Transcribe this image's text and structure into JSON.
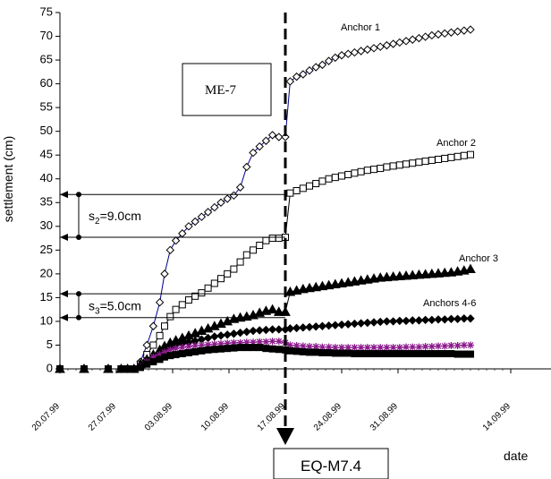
{
  "chart_data": {
    "type": "line",
    "title": "",
    "site_label": "ME-7",
    "ylabel": "settlement (cm)",
    "xlabel": "date",
    "ylim": [
      0,
      75
    ],
    "yticks": [
      0,
      5,
      10,
      15,
      20,
      25,
      30,
      35,
      40,
      45,
      50,
      55,
      60,
      65,
      70,
      75
    ],
    "xlim": [
      "20.07.99",
      "19.09.99"
    ],
    "xtick_labels": [
      "20.07.99",
      "27.07.99",
      "03.08.99",
      "10.08.99",
      "17.08.99",
      "24.08.99",
      "31.08.99",
      "14.09.99"
    ],
    "xtick_days": [
      0,
      7,
      14,
      21,
      28,
      35,
      42,
      56
    ],
    "event": {
      "label": "EQ-M7.4",
      "date": "17.08.99",
      "day": 28
    },
    "dimensions": [
      {
        "text": "s",
        "subscript": "2",
        "suffix": "=9.0cm",
        "from": 27.7,
        "to": 36.7
      },
      {
        "text": "s",
        "subscript": "3",
        "suffix": "=5.0cm",
        "from": 10.8,
        "to": 15.8
      }
    ],
    "series": [
      {
        "name": "Anchor 1",
        "marker": "diamond-open",
        "color": "#00008b",
        "x": [
          0,
          3,
          6,
          7.6,
          8.4,
          9.2,
          10.0,
          10.8,
          11.6,
          12.4,
          13.0,
          13.7,
          14.4,
          15.2,
          16.0,
          16.8,
          17.6,
          18.4,
          19.2,
          20.0,
          20.8,
          21.6,
          22.4,
          23.2,
          24.0,
          24.8,
          25.6,
          26.4,
          27.2,
          28.0,
          28.6,
          29.4,
          30.2,
          31.0,
          31.8,
          32.6,
          33.4,
          34.2,
          35.0,
          35.8,
          36.6,
          37.4,
          38.2,
          39.0,
          39.8,
          40.6,
          41.4,
          42.2,
          43.0,
          43.8,
          44.6,
          45.4,
          46.2,
          47.0,
          47.8,
          48.6,
          49.4,
          50.2,
          51.0
        ],
        "y": [
          0,
          0,
          0,
          0,
          0,
          0,
          1.5,
          5,
          9,
          14,
          20,
          25,
          27,
          28.5,
          30,
          31,
          32,
          33,
          34,
          35,
          35.8,
          36.5,
          38.2,
          42.5,
          45.5,
          46.8,
          48,
          49.2,
          48.8,
          48.8,
          60.5,
          61.5,
          62,
          62.8,
          63.5,
          64,
          64.8,
          65.5,
          66,
          66.3,
          66.6,
          66.9,
          67.2,
          67.5,
          67.8,
          68.1,
          68.4,
          68.7,
          69,
          69.3,
          69.6,
          69.9,
          70.2,
          70.4,
          70.6,
          70.8,
          71,
          71.2,
          71.4
        ]
      },
      {
        "name": "Anchor 2",
        "marker": "square-open",
        "color": "#000000",
        "x": [
          0,
          3,
          6,
          7.6,
          8.4,
          9.2,
          10.0,
          10.8,
          11.6,
          12.4,
          13.0,
          13.7,
          14.4,
          15.2,
          16.0,
          16.8,
          17.6,
          18.4,
          19.2,
          20.0,
          20.8,
          21.6,
          22.4,
          23.2,
          24.0,
          24.8,
          25.6,
          26.4,
          27.2,
          28.0,
          28.6,
          29.4,
          30.2,
          31.0,
          31.8,
          32.6,
          33.4,
          34.2,
          35.0,
          35.8,
          36.6,
          37.4,
          38.2,
          39.0,
          39.8,
          40.6,
          41.4,
          42.2,
          43.0,
          43.8,
          44.6,
          45.4,
          46.2,
          47.0,
          47.8,
          48.6,
          49.4,
          50.2,
          51.0
        ],
        "y": [
          0,
          0,
          0,
          0,
          0,
          0,
          1,
          3,
          5,
          7,
          9,
          11,
          12.5,
          13.5,
          14.5,
          15.3,
          16,
          17,
          18,
          19,
          20,
          21,
          22.5,
          24,
          25,
          26,
          27,
          27.5,
          27.5,
          27.7,
          37,
          37.5,
          38,
          38.5,
          39,
          39.5,
          40,
          40.3,
          40.6,
          40.9,
          41.2,
          41.5,
          41.8,
          42,
          42.2,
          42.5,
          42.7,
          42.9,
          43.1,
          43.3,
          43.5,
          43.7,
          43.9,
          44.1,
          44.3,
          44.5,
          44.7,
          44.9,
          45.1
        ]
      },
      {
        "name": "Anchor 3",
        "marker": "triangle-filled",
        "color": "#000000",
        "x": [
          0,
          3,
          6,
          7.6,
          8.4,
          9.2,
          10.0,
          10.8,
          11.6,
          12.4,
          13.0,
          13.7,
          14.4,
          15.2,
          16.0,
          16.8,
          17.6,
          18.4,
          19.2,
          20.0,
          20.8,
          21.6,
          22.4,
          23.2,
          24.0,
          24.8,
          25.6,
          26.4,
          27.2,
          28.0,
          28.6,
          29.4,
          30.2,
          31.0,
          31.8,
          32.6,
          33.4,
          34.2,
          35.0,
          35.8,
          36.6,
          37.4,
          38.2,
          39.0,
          39.8,
          40.6,
          41.4,
          42.2,
          43.0,
          43.8,
          44.6,
          45.4,
          46.2,
          47.0,
          47.8,
          48.6,
          49.4,
          50.2,
          51.0
        ],
        "y": [
          0,
          0,
          0,
          0,
          0,
          0,
          1,
          2,
          3,
          4,
          4.8,
          5.5,
          6,
          6.5,
          7,
          7.5,
          8,
          8.5,
          9,
          9.5,
          10,
          10.5,
          10.8,
          11,
          11.3,
          11.8,
          12.2,
          12.5,
          12,
          12,
          16.2,
          16.5,
          16.8,
          17,
          17.2,
          17.4,
          17.6,
          17.8,
          18,
          18.2,
          18.4,
          18.6,
          18.8,
          19,
          19.2,
          19.3,
          19.4,
          19.5,
          19.6,
          19.7,
          19.8,
          19.9,
          20,
          20.1,
          20.2,
          20.3,
          20.5,
          20.7,
          21
        ]
      },
      {
        "name": "Anchors 4-6",
        "marker": "diamond-filled",
        "color": "#000000",
        "x": [
          0,
          3,
          6,
          7.6,
          8.4,
          9.2,
          10.0,
          10.8,
          11.6,
          12.4,
          13.0,
          13.7,
          14.4,
          15.2,
          16.0,
          16.8,
          17.6,
          18.4,
          19.2,
          20.0,
          20.8,
          21.6,
          22.4,
          23.2,
          24.0,
          24.8,
          25.6,
          26.4,
          27.2,
          28.0,
          28.6,
          29.4,
          30.2,
          31.0,
          31.8,
          32.6,
          33.4,
          34.2,
          35.0,
          35.8,
          36.6,
          37.4,
          38.2,
          39.0,
          39.8,
          40.6,
          41.4,
          42.2,
          43.0,
          43.8,
          44.6,
          45.4,
          46.2,
          47.0,
          47.8,
          48.6,
          49.4,
          50.2,
          51.0
        ],
        "y": [
          0,
          0,
          0,
          0,
          0,
          0,
          0.5,
          1.5,
          2.5,
          3.3,
          4,
          4.5,
          5,
          5.3,
          5.6,
          5.9,
          6.2,
          6.5,
          6.8,
          7,
          7.2,
          7.4,
          7.6,
          7.8,
          8,
          8.1,
          8.2,
          8.3,
          8.3,
          8.3,
          8.5,
          8.6,
          8.7,
          8.8,
          8.9,
          9,
          9.1,
          9.2,
          9.3,
          9.4,
          9.5,
          9.6,
          9.7,
          9.8,
          9.9,
          10,
          10,
          10.1,
          10.1,
          10.2,
          10.2,
          10.3,
          10.3,
          10.4,
          10.4,
          10.5,
          10.5,
          10.6,
          10.6
        ]
      },
      {
        "name": "",
        "marker": "star",
        "color": "#8b1a8b",
        "x": [
          0,
          3,
          6,
          7.6,
          8.4,
          9.2,
          10.0,
          10.8,
          11.6,
          12.4,
          13.0,
          13.7,
          14.4,
          15.2,
          16.0,
          16.8,
          17.6,
          18.4,
          19.2,
          20.0,
          20.8,
          21.6,
          22.4,
          23.2,
          24.0,
          24.8,
          25.6,
          26.4,
          27.2,
          28.0,
          28.6,
          29.4,
          30.2,
          31.0,
          31.8,
          32.6,
          33.4,
          34.2,
          35.0,
          35.8,
          36.6,
          37.4,
          38.2,
          39.0,
          39.8,
          40.6,
          41.4,
          42.2,
          43.0,
          43.8,
          44.6,
          45.4,
          46.2,
          47.0,
          47.8,
          48.6,
          49.4,
          50.2,
          51.0
        ],
        "y": [
          0,
          0,
          0,
          0,
          0,
          0,
          0.5,
          1.5,
          2.5,
          3,
          3.5,
          4,
          4.3,
          4.5,
          4.7,
          4.9,
          5,
          5.1,
          5.2,
          5.3,
          5.4,
          5.5,
          5.5,
          5.6,
          5.6,
          5.7,
          5.7,
          5.8,
          5.8,
          5.5,
          5,
          4.9,
          4.8,
          4.7,
          4.7,
          4.6,
          4.6,
          4.5,
          4.5,
          4.5,
          4.5,
          4.5,
          4.5,
          4.5,
          4.5,
          4.5,
          4.5,
          4.5,
          4.6,
          4.6,
          4.6,
          4.7,
          4.7,
          4.8,
          4.8,
          4.9,
          4.9,
          5,
          5
        ]
      },
      {
        "name": "",
        "marker": "square-filled",
        "color": "#000000",
        "x": [
          0,
          3,
          6,
          7.6,
          8.4,
          9.2,
          10.0,
          10.8,
          11.6,
          12.4,
          13.0,
          13.7,
          14.4,
          15.2,
          16.0,
          16.8,
          17.6,
          18.4,
          19.2,
          20.0,
          20.8,
          21.6,
          22.4,
          23.2,
          24.0,
          24.8,
          25.6,
          26.4,
          27.2,
          28.0,
          28.6,
          29.4,
          30.2,
          31.0,
          31.8,
          32.6,
          33.4,
          34.2,
          35.0,
          35.8,
          36.6,
          37.4,
          38.2,
          39.0,
          39.8,
          40.6,
          41.4,
          42.2,
          43.0,
          43.8,
          44.6,
          45.4,
          46.2,
          47.0,
          47.8,
          48.6,
          49.4,
          50.2,
          51.0
        ],
        "y": [
          0,
          0,
          0,
          0,
          0,
          0,
          0.3,
          1,
          1.5,
          2,
          2.5,
          2.8,
          3,
          3.2,
          3.4,
          3.6,
          3.8,
          4,
          4.1,
          4.2,
          4.3,
          4.4,
          4.5,
          4.5,
          4.5,
          4.5,
          4.3,
          4.2,
          4.1,
          4,
          3.8,
          3.7,
          3.6,
          3.5,
          3.5,
          3.4,
          3.4,
          3.3,
          3.3,
          3.3,
          3.2,
          3.2,
          3.2,
          3.2,
          3.2,
          3.2,
          3.2,
          3.2,
          3.2,
          3.2,
          3.2,
          3.2,
          3.2,
          3.2,
          3.2,
          3.2,
          3.1,
          3.1,
          3.1
        ]
      }
    ],
    "annotations": [
      "Anchor 1",
      "Anchor  2",
      "Anchor 3",
      "Anchors 4-6"
    ]
  }
}
